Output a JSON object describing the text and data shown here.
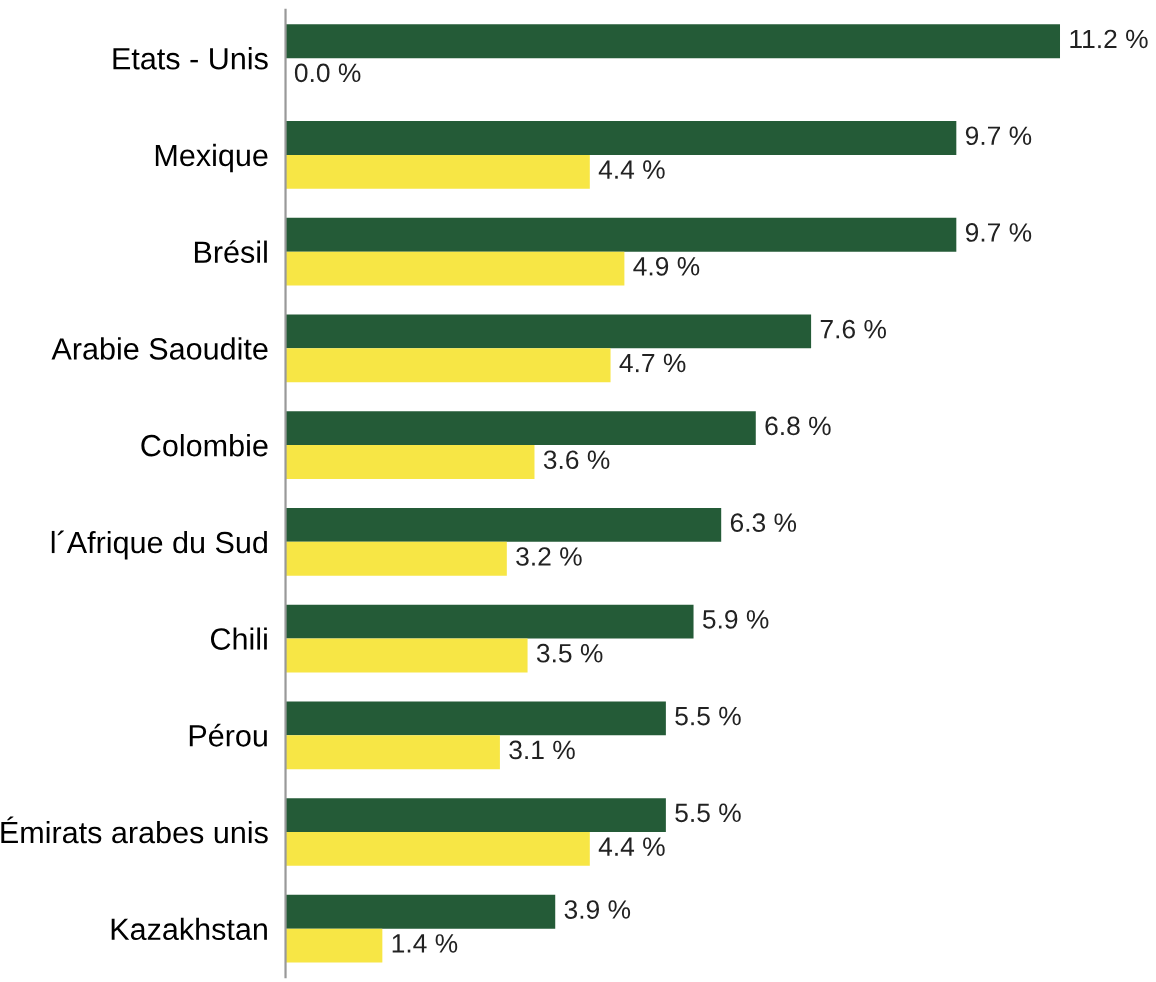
{
  "chart_data": {
    "type": "bar",
    "orientation": "horizontal",
    "categories": [
      "Etats - Unis",
      "Mexique",
      "Brésil",
      "Arabie Saoudite",
      "Colombie",
      "l´Afrique du Sud",
      "Chili",
      "Pérou",
      "Émirats arabes unis",
      "Kazakhstan"
    ],
    "series": [
      {
        "color": "#245b37",
        "values": [
          11.2,
          9.7,
          9.7,
          7.6,
          6.8,
          6.3,
          5.9,
          5.5,
          5.5,
          3.9
        ],
        "value_labels": [
          "11.2 %",
          "9.7 %",
          "9.7 %",
          "7.6 %",
          "6.8 %",
          "6.3 %",
          "5.9 %",
          "5.5 %",
          "5.5 %",
          "3.9 %"
        ]
      },
      {
        "color": "#f7e645",
        "values": [
          0.0,
          4.4,
          4.9,
          4.7,
          3.6,
          3.2,
          3.5,
          3.1,
          4.4,
          1.4
        ],
        "value_labels": [
          "0.0 %",
          "4.4 %",
          "4.9 %",
          "4.7 %",
          "3.6 %",
          "3.2 %",
          "3.5 %",
          "3.1 %",
          "4.4 %",
          "1.4 %"
        ]
      }
    ],
    "grid": false,
    "legend": false
  }
}
